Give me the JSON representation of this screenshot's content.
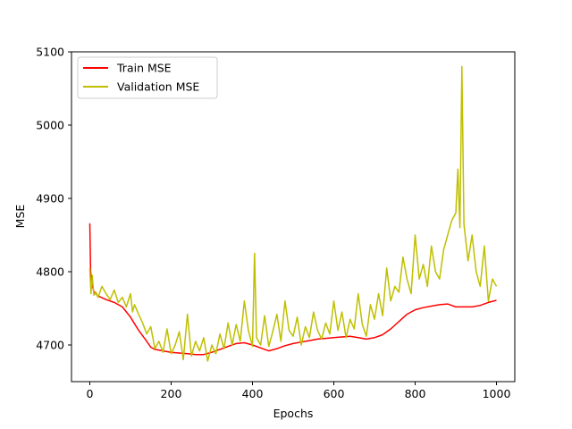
{
  "chart_data": {
    "type": "line",
    "title": "",
    "xlabel": "Epochs",
    "ylabel": "MSE",
    "xlim": [
      -45,
      1045
    ],
    "ylim": [
      4650,
      5100
    ],
    "xticks": [
      0,
      200,
      400,
      600,
      800,
      1000
    ],
    "yticks": [
      4700,
      4800,
      4900,
      5000,
      5100
    ],
    "grid": false,
    "legend_position": "top-left",
    "series": [
      {
        "name": "Train MSE",
        "color": "#ff0000",
        "x": [
          0,
          2,
          5,
          10,
          20,
          40,
          60,
          80,
          100,
          120,
          140,
          150,
          160,
          180,
          200,
          220,
          240,
          260,
          280,
          300,
          320,
          340,
          360,
          380,
          400,
          420,
          440,
          460,
          480,
          500,
          520,
          540,
          560,
          580,
          600,
          620,
          640,
          660,
          680,
          700,
          720,
          740,
          760,
          780,
          800,
          820,
          840,
          860,
          880,
          900,
          920,
          940,
          960,
          980,
          1000
        ],
        "y": [
          4866,
          4800,
          4783,
          4773,
          4767,
          4762,
          4758,
          4752,
          4738,
          4720,
          4705,
          4697,
          4694,
          4692,
          4690,
          4689,
          4688,
          4687,
          4687,
          4690,
          4694,
          4698,
          4702,
          4703,
          4700,
          4696,
          4692,
          4695,
          4699,
          4702,
          4704,
          4706,
          4708,
          4709,
          4710,
          4711,
          4712,
          4710,
          4708,
          4710,
          4714,
          4722,
          4732,
          4742,
          4748,
          4751,
          4753,
          4755,
          4756,
          4752,
          4752,
          4752,
          4754,
          4758,
          4761
        ]
      },
      {
        "name": "Validation MSE",
        "color": "#bfbf00",
        "x": [
          0,
          3,
          6,
          10,
          15,
          20,
          30,
          40,
          50,
          60,
          70,
          80,
          90,
          100,
          105,
          110,
          120,
          130,
          140,
          150,
          160,
          170,
          180,
          190,
          200,
          210,
          220,
          230,
          240,
          250,
          260,
          270,
          280,
          290,
          300,
          310,
          320,
          330,
          340,
          350,
          360,
          370,
          380,
          390,
          400,
          405,
          410,
          420,
          430,
          440,
          450,
          460,
          470,
          480,
          490,
          500,
          510,
          520,
          530,
          540,
          550,
          560,
          570,
          580,
          590,
          600,
          610,
          620,
          630,
          640,
          650,
          660,
          670,
          680,
          690,
          700,
          710,
          720,
          730,
          740,
          750,
          760,
          770,
          780,
          790,
          800,
          810,
          820,
          830,
          840,
          850,
          860,
          870,
          880,
          890,
          900,
          905,
          910,
          915,
          920,
          930,
          940,
          950,
          960,
          970,
          980,
          990,
          1000
        ],
        "y": [
          4805,
          4770,
          4795,
          4768,
          4772,
          4765,
          4780,
          4770,
          4762,
          4775,
          4758,
          4765,
          4752,
          4770,
          4745,
          4755,
          4742,
          4730,
          4715,
          4725,
          4695,
          4705,
          4690,
          4722,
          4688,
          4700,
          4718,
          4680,
          4742,
          4685,
          4705,
          4692,
          4710,
          4678,
          4700,
          4688,
          4715,
          4695,
          4730,
          4700,
          4728,
          4705,
          4760,
          4720,
          4698,
          4825,
          4710,
          4700,
          4740,
          4698,
          4718,
          4742,
          4705,
          4760,
          4720,
          4712,
          4738,
          4700,
          4725,
          4710,
          4745,
          4720,
          4708,
          4730,
          4715,
          4760,
          4720,
          4745,
          4710,
          4735,
          4722,
          4770,
          4728,
          4712,
          4755,
          4735,
          4770,
          4740,
          4805,
          4760,
          4780,
          4772,
          4820,
          4790,
          4770,
          4850,
          4790,
          4810,
          4780,
          4835,
          4800,
          4790,
          4830,
          4850,
          4870,
          4880,
          4940,
          4860,
          5080,
          4865,
          4815,
          4850,
          4800,
          4780,
          4835,
          4760,
          4790,
          4780
        ]
      }
    ]
  }
}
